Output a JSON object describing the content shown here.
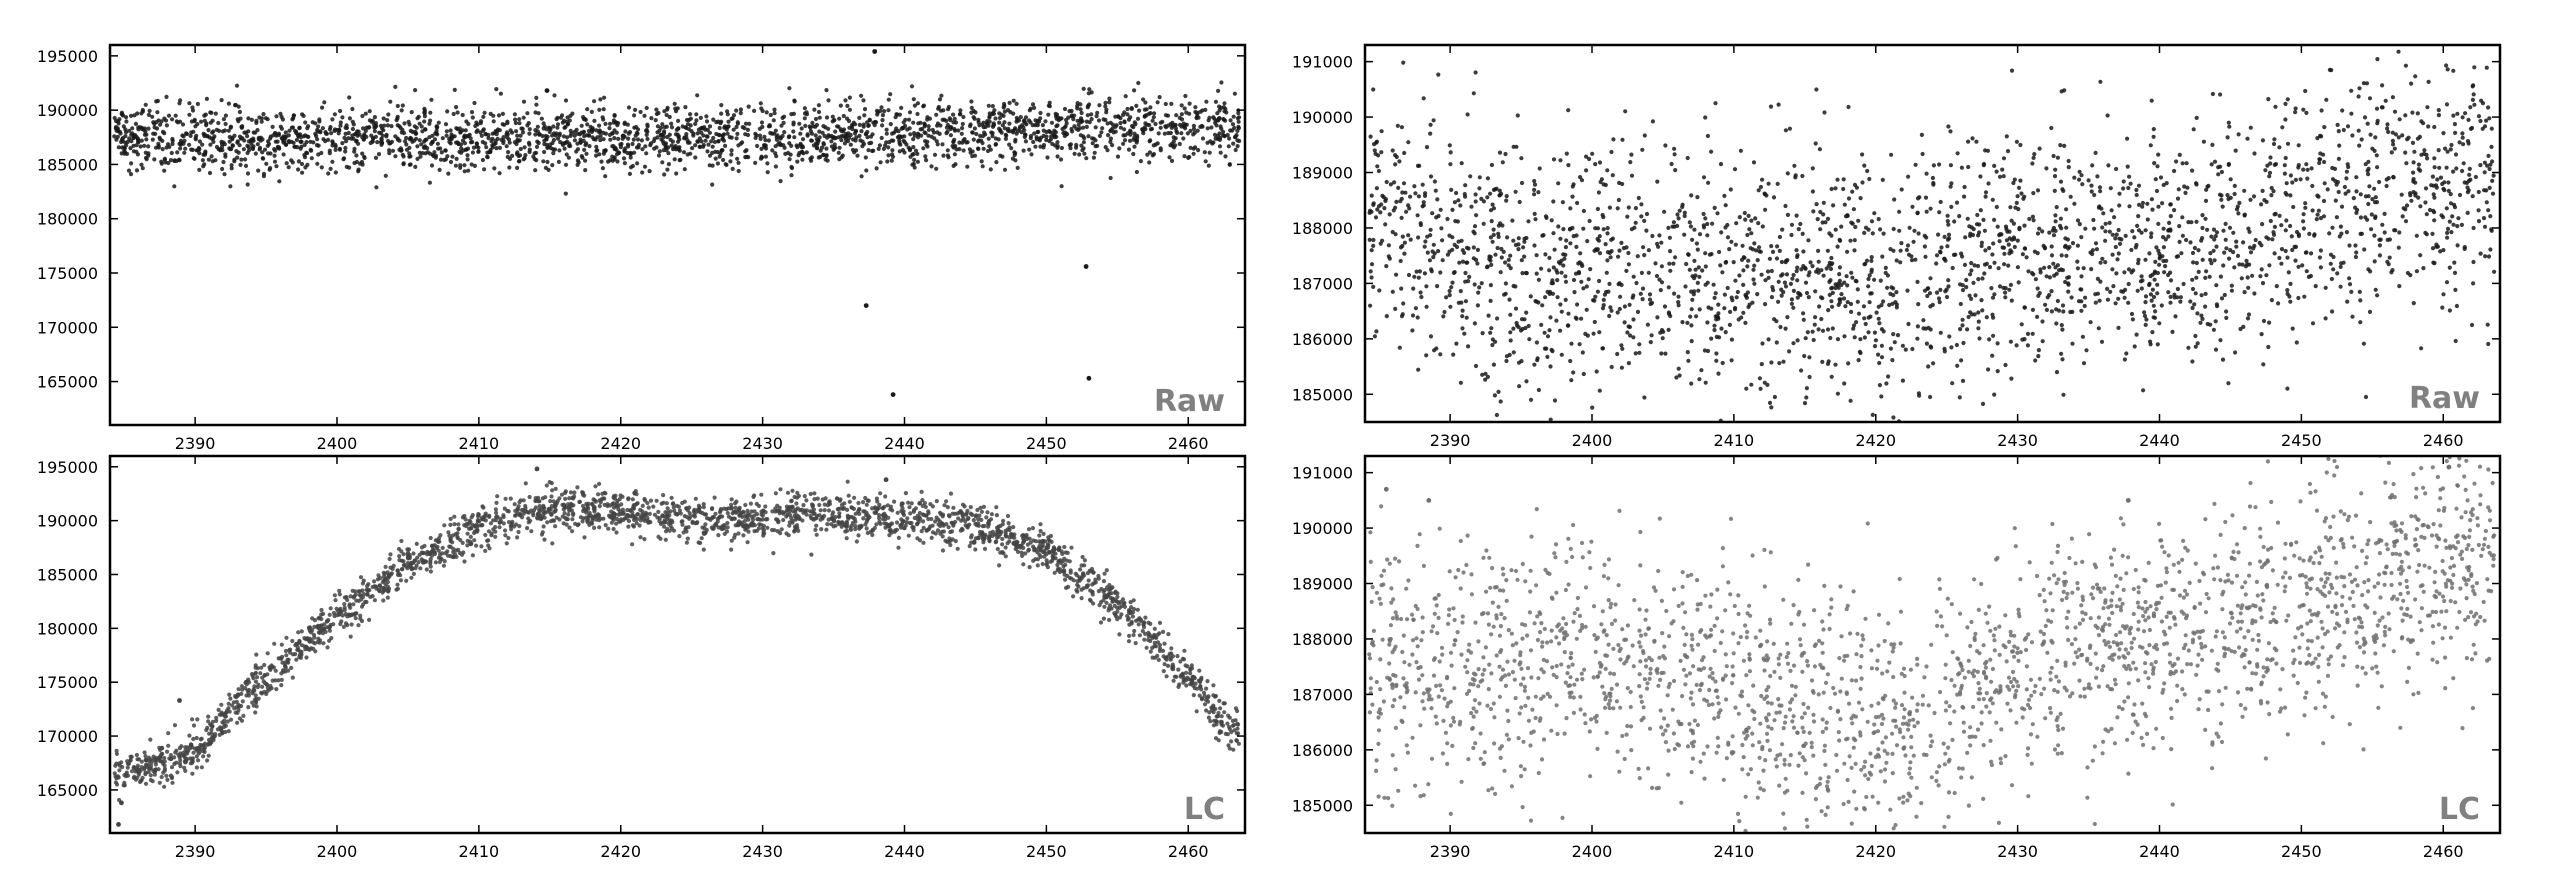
{
  "figure": {
    "description_panels": 4,
    "point_color_dark": "#1a1a1a",
    "point_color_light": "#6e6e6e",
    "label_color": "#808080"
  },
  "chart_data": [
    {
      "type": "scatter",
      "panel": "top-left",
      "label": "Raw",
      "xlabel": "",
      "ylabel": "",
      "xlim": [
        2384,
        2464
      ],
      "ylim": [
        161000,
        196000
      ],
      "xticks": [
        2390,
        2400,
        2410,
        2420,
        2430,
        2440,
        2450,
        2460
      ],
      "yticks": [
        165000,
        170000,
        175000,
        180000,
        185000,
        190000,
        195000
      ],
      "grid": false,
      "point_color": "#1a1a1a",
      "trend": {
        "x": [
          2384,
          2395,
          2410,
          2420,
          2430,
          2440,
          2450,
          2463
        ],
        "y": [
          187800,
          187200,
          187500,
          187300,
          187600,
          187800,
          188200,
          188700
        ]
      },
      "scatter_sd": 1500,
      "n_points": 2500,
      "outliers": {
        "x": [
          2414.8,
          2437.3,
          2437.9,
          2439.2,
          2452.8,
          2453.0
        ],
        "y": [
          191800,
          172000,
          195400,
          163800,
          175600,
          165300
        ]
      }
    },
    {
      "type": "scatter",
      "panel": "top-right",
      "label": "Raw",
      "xlabel": "",
      "ylabel": "",
      "xlim": [
        2384,
        2464
      ],
      "ylim": [
        184500,
        191300
      ],
      "xticks": [
        2390,
        2400,
        2410,
        2420,
        2430,
        2440,
        2450,
        2460
      ],
      "yticks": [
        185000,
        186000,
        187000,
        188000,
        189000,
        190000,
        191000
      ],
      "grid": false,
      "point_color": "#1a1a1a",
      "trend": {
        "x": [
          2384,
          2388,
          2392,
          2396,
          2400,
          2410,
          2420,
          2430,
          2440,
          2450,
          2457,
          2463
        ],
        "y": [
          188400,
          188000,
          187600,
          187000,
          187300,
          187100,
          187100,
          187500,
          187600,
          188200,
          188800,
          189000
        ]
      },
      "scatter_sd": 1150,
      "n_points": 2600,
      "outliers": {
        "x": [],
        "y": []
      }
    },
    {
      "type": "scatter",
      "panel": "bottom-left",
      "label": "LC",
      "xlabel": "",
      "ylabel": "",
      "xlim": [
        2384,
        2464
      ],
      "ylim": [
        161000,
        196000
      ],
      "xticks": [
        2390,
        2400,
        2410,
        2420,
        2430,
        2440,
        2450,
        2460
      ],
      "yticks": [
        165000,
        170000,
        175000,
        180000,
        185000,
        190000,
        195000
      ],
      "grid": false,
      "point_color": "#444444",
      "trend": {
        "x": [
          2384,
          2386,
          2390,
          2395,
          2400,
          2405,
          2410,
          2415,
          2420,
          2425,
          2430,
          2435,
          2440,
          2445,
          2450,
          2455,
          2460,
          2463
        ],
        "y": [
          166500,
          167000,
          168800,
          175500,
          181200,
          185800,
          189500,
          191200,
          191000,
          189800,
          190300,
          190500,
          190200,
          189500,
          187000,
          182500,
          175500,
          170500
        ]
      },
      "scatter_sd": 1000,
      "n_points": 2500,
      "outliers": {
        "x": [
          2384.6,
          2384.8,
          2388.9,
          2414.1,
          2438.7
        ],
        "y": [
          161800,
          163800,
          173300,
          194800,
          193800
        ]
      }
    },
    {
      "type": "scatter",
      "panel": "bottom-right",
      "label": "LC",
      "xlabel": "",
      "ylabel": "",
      "xlim": [
        2384,
        2464
      ],
      "ylim": [
        184500,
        191300
      ],
      "xticks": [
        2390,
        2400,
        2410,
        2420,
        2430,
        2440,
        2450,
        2460
      ],
      "yticks": [
        185000,
        186000,
        187000,
        188000,
        189000,
        190000,
        191000
      ],
      "grid": false,
      "point_color": "#707070",
      "trend": {
        "x": [
          2384,
          2392,
          2400,
          2410,
          2418,
          2424,
          2430,
          2440,
          2450,
          2458,
          2463
        ],
        "y": [
          187600,
          187500,
          187600,
          187200,
          186700,
          186500,
          187600,
          188000,
          188500,
          189300,
          189200
        ]
      },
      "scatter_sd": 1050,
      "n_points": 2400,
      "outliers": {
        "x": [
          2385.5,
          2388.5,
          2437.8,
          2460.4
        ],
        "y": [
          190700,
          190500,
          190500,
          191100
        ]
      }
    }
  ]
}
